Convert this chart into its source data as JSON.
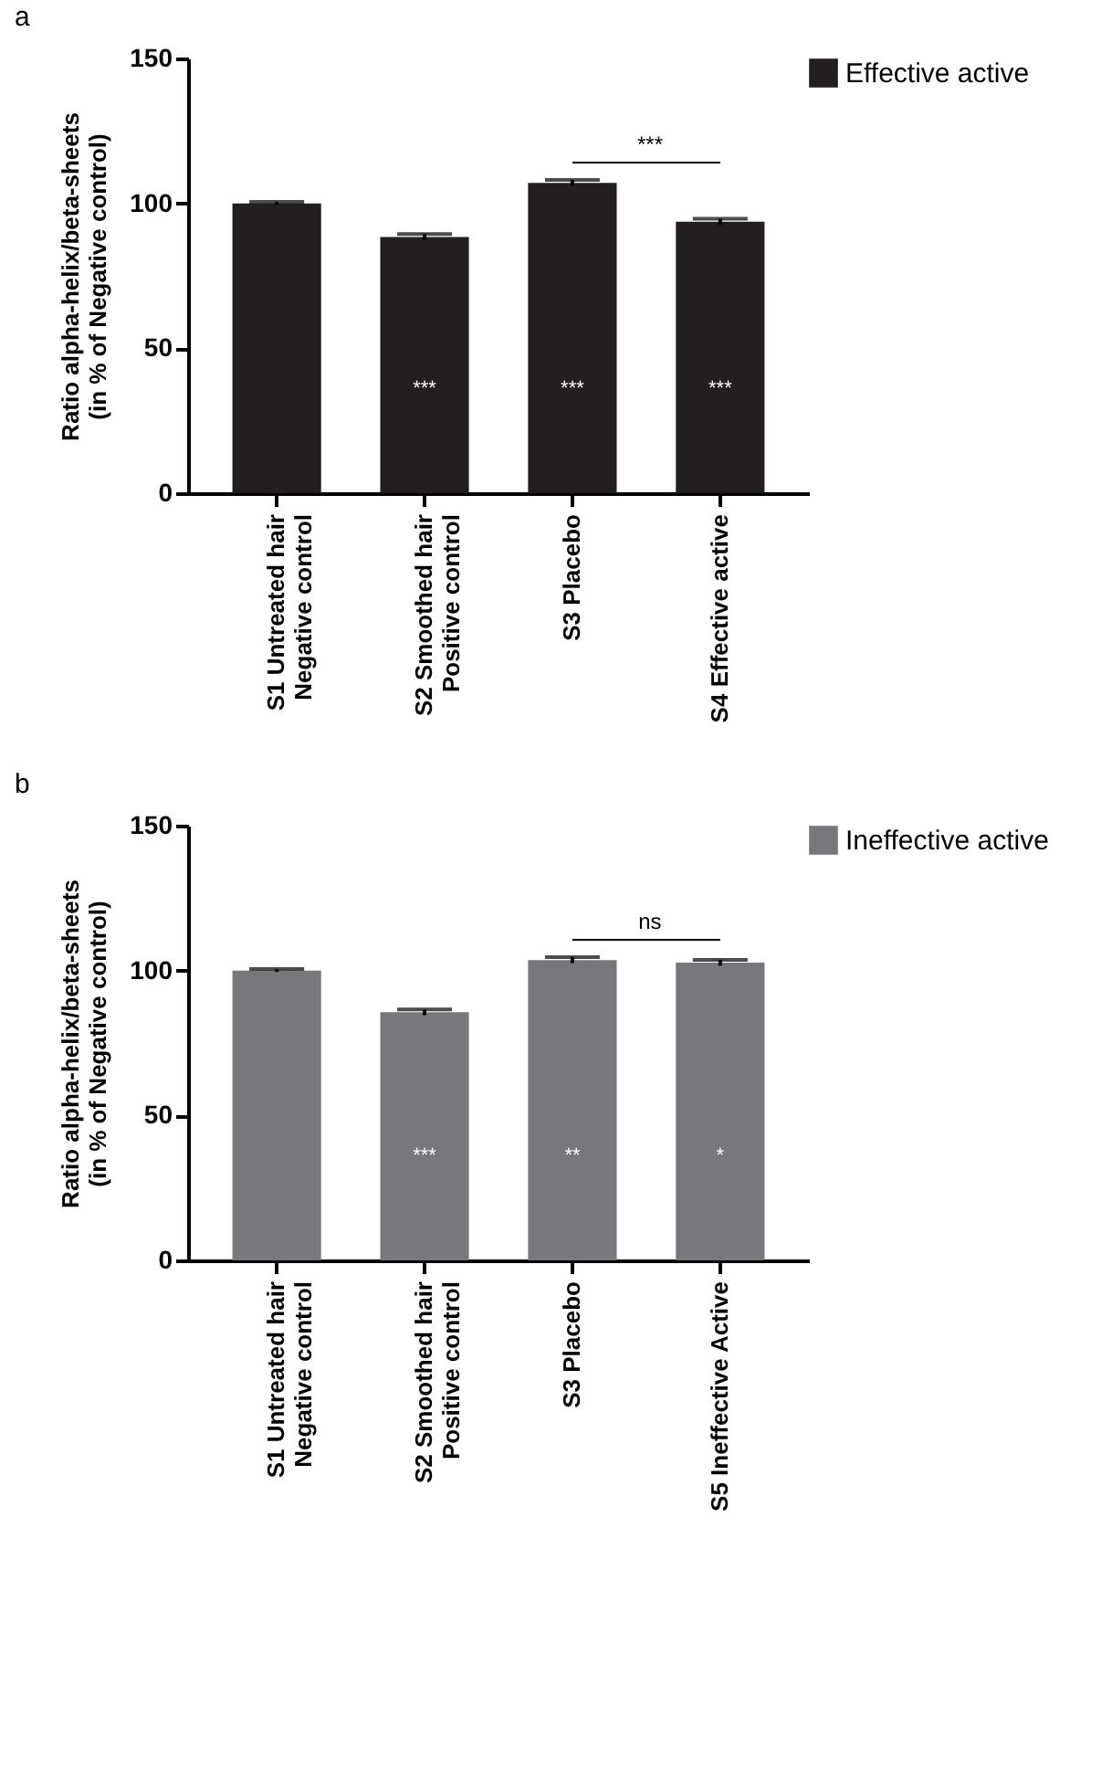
{
  "chart_data": [
    {
      "type": "bar",
      "title": "a",
      "ylabel": "Ratio alpha-helix/beta-sheets\n(in % of Negative control)",
      "categories": [
        "S1 Untreated hair\nNegative control",
        "S2 Smoothed hair\nPositive control",
        "S3 Placebo",
        "S4 Effective active"
      ],
      "series": [
        {
          "name": "Effective active",
          "color": "#231f20",
          "values": [
            100,
            88.4,
            107.1,
            93.7
          ],
          "errors": [
            0.5,
            1,
            1,
            1
          ]
        }
      ],
      "ylim": [
        0,
        150
      ],
      "yticks": [
        0,
        50,
        100,
        150
      ],
      "legend": "top right",
      "grid": false,
      "annotations": [
        "***",
        "***",
        "***",
        "***"
      ]
    },
    {
      "type": "bar",
      "title": "b",
      "ylabel": "Ratio alpha-helix/beta-sheets\n(in % of Negative control)",
      "categories": [
        "S1 Untreated hair\nNegative control",
        "S2 Smoothed hair\nPositive control",
        "S3 Placebo",
        "S5 Ineffective Active"
      ],
      "series": [
        {
          "name": "Ineffective active",
          "color": "#77787b",
          "values": [
            100,
            85.6,
            103.6,
            102.7
          ],
          "errors": [
            0.5,
            1,
            1,
            1
          ]
        }
      ],
      "ylim": [
        0,
        150
      ],
      "yticks": [
        0,
        50,
        100,
        150
      ],
      "legend": "top right",
      "grid": false,
      "annotations": [
        "***",
        "**",
        "*",
        "ns"
      ]
    }
  ]
}
